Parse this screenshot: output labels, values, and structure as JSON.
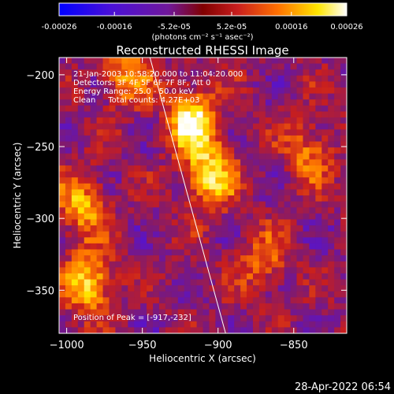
{
  "chart_data": [
    {
      "type": "colorbar",
      "ticks": [
        "-0.00026",
        "-0.00016",
        "-5.2e-05",
        "5.2e-05",
        "0.00016",
        "0.00026"
      ],
      "tick_values": [
        -0.00026,
        -0.00016,
        -5.2e-05,
        5.2e-05,
        0.00016,
        0.00026
      ],
      "range": [
        -0.00026,
        0.00026
      ],
      "units": "(photons cm⁻² s⁻¹ asec⁻²)",
      "colormap": [
        "#0000ff",
        "#5a14c8",
        "#801a70",
        "#c81e1e",
        "#ff7800",
        "#ffe600",
        "#ffffff"
      ]
    },
    {
      "type": "heatmap",
      "title": "Reconstructed RHESSI Image",
      "xlabel": "Heliocentric X (arcsec)",
      "ylabel": "Heliocentric Y (arcsec)",
      "xlim": [
        -1005,
        -815
      ],
      "ylim": [
        -380,
        -188
      ],
      "x_ticks": [
        -1000,
        -950,
        -900,
        -850
      ],
      "x_tick_labels": [
        "−1000",
        "−950",
        "−900",
        "−850"
      ],
      "y_ticks": [
        -200,
        -250,
        -300,
        -350
      ],
      "y_tick_labels": [
        "−200",
        "−250",
        "−300",
        "−350"
      ],
      "annotations": [
        "21-Jan-2003 10:58:20.000 to 11:04:20.000",
        "Detectors: 3F 4F 5F 6F 7F 8F, Att 0",
        "Energy Range: 25.0 - 50.0 keV",
        "Clean     Total counts: 4.27E+03"
      ],
      "peak_label": "Position of Peak = [-917,-232]",
      "peak": [
        -917,
        -232
      ],
      "limb_line": [
        [
          -945,
          -188
        ],
        [
          -895,
          -380
        ]
      ],
      "bright_regions": [
        {
          "x": -917,
          "y": -232,
          "intensity": 1.0
        },
        {
          "x": -905,
          "y": -270,
          "intensity": 0.85
        },
        {
          "x": -985,
          "y": -345,
          "intensity": 0.8
        },
        {
          "x": -990,
          "y": -290,
          "intensity": 0.65
        },
        {
          "x": -960,
          "y": -200,
          "intensity": 0.6
        },
        {
          "x": -840,
          "y": -255,
          "intensity": 0.5
        },
        {
          "x": -870,
          "y": -330,
          "intensity": 0.45
        }
      ]
    }
  ],
  "footer": {
    "timestamp": "28-Apr-2022 06:54"
  }
}
